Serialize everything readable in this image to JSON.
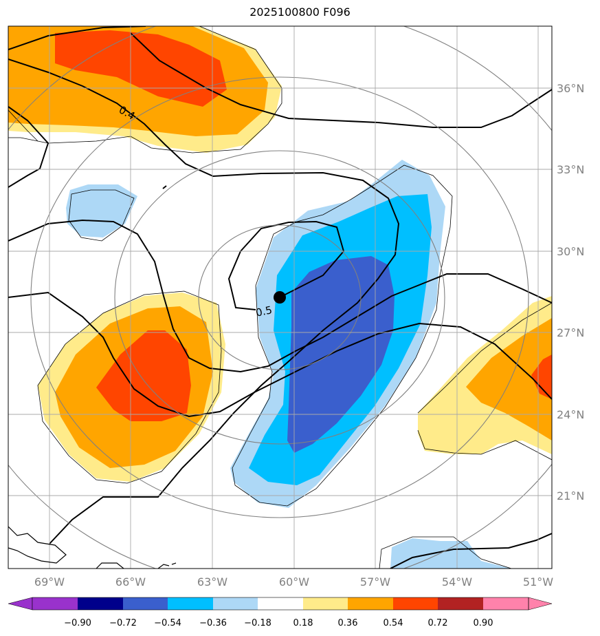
{
  "title": "2025100800 F096",
  "longitude_labels": [
    "69°W",
    "66°W",
    "63°W",
    "60°W",
    "57°W",
    "54°W",
    "51°W"
  ],
  "latitude_labels": [
    "36°N",
    "33°N",
    "30°N",
    "27°N",
    "24°N",
    "21°N"
  ],
  "contour_labels": [
    "0.4",
    "0.5"
  ],
  "colorbar": {
    "ticks": [
      "−0.90",
      "−0.72",
      "−0.54",
      "−0.36",
      "−0.18",
      "0.18",
      "0.36",
      "0.54",
      "0.72",
      "0.90"
    ],
    "colors": [
      "#9932cc",
      "#00008b",
      "#3a5fcd",
      "#00bfff",
      "#add8f6",
      "#ffffff",
      "#ffeb8a",
      "#ffa500",
      "#ff4500",
      "#b22222",
      "#ff82ab"
    ]
  },
  "colors": {
    "neg_light": "#add8f6",
    "neg_mid": "#00bfff",
    "neg_dark": "#3a5fcd",
    "pos_light": "#ffeb8a",
    "pos_mid": "#ffa500",
    "pos_dark": "#ff4500"
  },
  "center_marker": "storm-center"
}
